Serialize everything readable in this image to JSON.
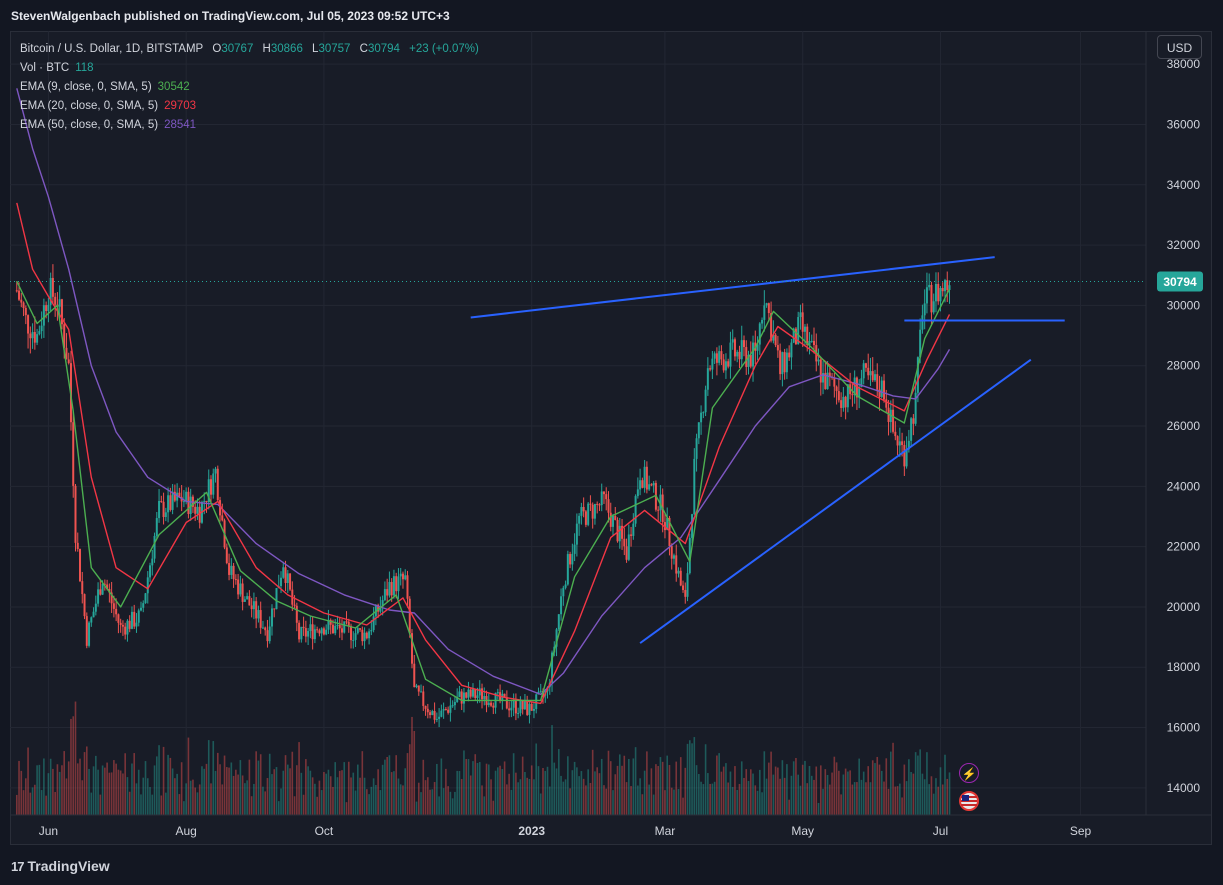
{
  "header": {
    "published": "StevenWalgenbach published on TradingView.com, Jul 05, 2023 09:52 UTC+3"
  },
  "legend": {
    "symbol": "Bitcoin / U.S. Dollar, 1D, BITSTAMP",
    "o_label": "O",
    "o_val": "30767",
    "h_label": "H",
    "h_val": "30866",
    "l_label": "L",
    "l_val": "30757",
    "c_label": "C",
    "c_val": "30794",
    "change": "+23 (+0.07%)",
    "vol_label": "Vol · BTC",
    "vol_val": "118",
    "ema9_label": "EMA (9, close, 0, SMA, 5)",
    "ema9_val": "30542",
    "ema20_label": "EMA (20, close, 0, SMA, 5)",
    "ema20_val": "29703",
    "ema50_label": "EMA (50, close, 0, SMA, 5)",
    "ema50_val": "28541"
  },
  "currency_button": "USD",
  "footer": {
    "brand": "TradingView",
    "logo_mark": "17"
  },
  "icons": {
    "lightning": "lightning-icon",
    "flag": "us-flag-icon"
  },
  "colors": {
    "up": "#26a69a",
    "down": "#ef5350",
    "ema9": "#4caf50",
    "ema20": "#f23645",
    "ema50": "#7e57c2",
    "trendline": "#2962ff",
    "last_price": "#26a69a"
  },
  "chart_data": {
    "type": "candlestick",
    "title": "Bitcoin / U.S. Dollar, 1D, BITSTAMP",
    "y_ticks": [
      14000,
      16000,
      18000,
      20000,
      22000,
      24000,
      26000,
      28000,
      30000,
      32000,
      34000,
      36000,
      38000
    ],
    "y_range": [
      13100,
      39100
    ],
    "x_ticks": [
      {
        "label": "Jun",
        "date": "2022-06-01"
      },
      {
        "label": "Aug",
        "date": "2022-08-01"
      },
      {
        "label": "Oct",
        "date": "2022-10-01"
      },
      {
        "label": "2023",
        "date": "2023-01-01"
      },
      {
        "label": "Mar",
        "date": "2023-03-01"
      },
      {
        "label": "May",
        "date": "2023-05-01"
      },
      {
        "label": "Jul",
        "date": "2023-07-01"
      },
      {
        "label": "Sep",
        "date": "2023-09-01"
      }
    ],
    "x_range": [
      "2022-05-15",
      "2023-09-30"
    ],
    "last_price": 30794,
    "price_path": [
      [
        "2022-05-18",
        30500
      ],
      [
        "2022-05-22",
        29500
      ],
      [
        "2022-05-27",
        29000
      ],
      [
        "2022-06-01",
        30500
      ],
      [
        "2022-06-05",
        30200
      ],
      [
        "2022-06-10",
        28000
      ],
      [
        "2022-06-13",
        22500
      ],
      [
        "2022-06-18",
        19000
      ],
      [
        "2022-06-25",
        21000
      ],
      [
        "2022-07-03",
        19300
      ],
      [
        "2022-07-12",
        19700
      ],
      [
        "2022-07-20",
        23200
      ],
      [
        "2022-07-30",
        23600
      ],
      [
        "2022-08-07",
        23200
      ],
      [
        "2022-08-14",
        24500
      ],
      [
        "2022-08-20",
        21200
      ],
      [
        "2022-08-28",
        20200
      ],
      [
        "2022-09-06",
        19200
      ],
      [
        "2022-09-13",
        21500
      ],
      [
        "2022-09-20",
        19000
      ],
      [
        "2022-09-30",
        19400
      ],
      [
        "2022-10-10",
        19200
      ],
      [
        "2022-10-20",
        19100
      ],
      [
        "2022-10-30",
        20700
      ],
      [
        "2022-11-06",
        20900
      ],
      [
        "2022-11-10",
        17200
      ],
      [
        "2022-11-20",
        16300
      ],
      [
        "2022-11-30",
        17000
      ],
      [
        "2022-12-10",
        17100
      ],
      [
        "2022-12-20",
        16800
      ],
      [
        "2022-12-31",
        16600
      ],
      [
        "2023-01-08",
        17200
      ],
      [
        "2023-01-15",
        20800
      ],
      [
        "2023-01-22",
        22900
      ],
      [
        "2023-02-02",
        23500
      ],
      [
        "2023-02-12",
        21800
      ],
      [
        "2023-02-18",
        24500
      ],
      [
        "2023-02-28",
        23200
      ],
      [
        "2023-03-10",
        20100
      ],
      [
        "2023-03-14",
        24600
      ],
      [
        "2023-03-20",
        28000
      ],
      [
        "2023-03-31",
        28400
      ],
      [
        "2023-04-10",
        28300
      ],
      [
        "2023-04-14",
        30400
      ],
      [
        "2023-04-21",
        27800
      ],
      [
        "2023-04-30",
        29300
      ],
      [
        "2023-05-10",
        27600
      ],
      [
        "2023-05-20",
        26900
      ],
      [
        "2023-05-28",
        27600
      ],
      [
        "2023-06-06",
        27200
      ],
      [
        "2023-06-10",
        25800
      ],
      [
        "2023-06-15",
        25100
      ],
      [
        "2023-06-20",
        26800
      ],
      [
        "2023-06-23",
        30000
      ],
      [
        "2023-06-30",
        30450
      ],
      [
        "2023-07-05",
        30794
      ]
    ],
    "ema50_path": [
      [
        "2022-05-18",
        37200
      ],
      [
        "2022-05-25",
        35200
      ],
      [
        "2022-06-01",
        33600
      ],
      [
        "2022-06-10",
        31200
      ],
      [
        "2022-06-20",
        28000
      ],
      [
        "2022-07-01",
        25800
      ],
      [
        "2022-07-15",
        24300
      ],
      [
        "2022-08-01",
        23500
      ],
      [
        "2022-08-15",
        23400
      ],
      [
        "2022-09-01",
        22100
      ],
      [
        "2022-09-20",
        21100
      ],
      [
        "2022-10-10",
        20400
      ],
      [
        "2022-10-30",
        19900
      ],
      [
        "2022-11-10",
        19800
      ],
      [
        "2022-11-25",
        18600
      ],
      [
        "2022-12-15",
        17700
      ],
      [
        "2023-01-05",
        17100
      ],
      [
        "2023-01-15",
        17800
      ],
      [
        "2023-02-01",
        19700
      ],
      [
        "2023-02-20",
        21300
      ],
      [
        "2023-03-08",
        22300
      ],
      [
        "2023-03-25",
        24200
      ],
      [
        "2023-04-10",
        26000
      ],
      [
        "2023-04-25",
        27300
      ],
      [
        "2023-05-10",
        27700
      ],
      [
        "2023-05-25",
        27400
      ],
      [
        "2023-06-10",
        27000
      ],
      [
        "2023-06-20",
        26900
      ],
      [
        "2023-06-30",
        27900
      ],
      [
        "2023-07-05",
        28541
      ]
    ],
    "ema20_path": [
      [
        "2022-05-18",
        33400
      ],
      [
        "2022-05-25",
        31200
      ],
      [
        "2022-06-01",
        30300
      ],
      [
        "2022-06-10",
        29200
      ],
      [
        "2022-06-20",
        24300
      ],
      [
        "2022-07-01",
        21300
      ],
      [
        "2022-07-15",
        20600
      ],
      [
        "2022-08-01",
        22800
      ],
      [
        "2022-08-15",
        23500
      ],
      [
        "2022-09-01",
        21300
      ],
      [
        "2022-09-15",
        20400
      ],
      [
        "2022-10-01",
        19800
      ],
      [
        "2022-10-20",
        19400
      ],
      [
        "2022-11-05",
        20300
      ],
      [
        "2022-11-15",
        18900
      ],
      [
        "2022-12-01",
        17400
      ],
      [
        "2022-12-20",
        17000
      ],
      [
        "2023-01-05",
        16800
      ],
      [
        "2023-01-20",
        19200
      ],
      [
        "2023-02-05",
        22300
      ],
      [
        "2023-02-20",
        23200
      ],
      [
        "2023-03-10",
        22100
      ],
      [
        "2023-03-25",
        25300
      ],
      [
        "2023-04-10",
        28000
      ],
      [
        "2023-04-20",
        29300
      ],
      [
        "2023-05-05",
        28500
      ],
      [
        "2023-05-25",
        27300
      ],
      [
        "2023-06-15",
        26500
      ],
      [
        "2023-06-25",
        28200
      ],
      [
        "2023-07-05",
        29703
      ]
    ],
    "ema9_path": [
      [
        "2022-05-18",
        30800
      ],
      [
        "2022-05-27",
        29400
      ],
      [
        "2022-06-05",
        30000
      ],
      [
        "2022-06-12",
        26500
      ],
      [
        "2022-06-20",
        21300
      ],
      [
        "2022-07-03",
        20000
      ],
      [
        "2022-07-20",
        22400
      ],
      [
        "2022-08-10",
        23800
      ],
      [
        "2022-08-25",
        21200
      ],
      [
        "2022-09-10",
        20200
      ],
      [
        "2022-09-25",
        19700
      ],
      [
        "2022-10-15",
        19300
      ],
      [
        "2022-11-02",
        20400
      ],
      [
        "2022-11-15",
        17600
      ],
      [
        "2022-12-01",
        16900
      ],
      [
        "2022-12-20",
        16900
      ],
      [
        "2023-01-05",
        16900
      ],
      [
        "2023-01-20",
        21000
      ],
      [
        "2023-02-05",
        23000
      ],
      [
        "2023-02-25",
        23700
      ],
      [
        "2023-03-12",
        21500
      ],
      [
        "2023-03-22",
        26600
      ],
      [
        "2023-04-10",
        28600
      ],
      [
        "2023-04-18",
        29800
      ],
      [
        "2023-05-05",
        28600
      ],
      [
        "2023-05-25",
        27000
      ],
      [
        "2023-06-15",
        26100
      ],
      [
        "2023-06-24",
        28900
      ],
      [
        "2023-07-05",
        30542
      ]
    ],
    "trendlines": [
      {
        "from": [
          "2022-12-05",
          29600
        ],
        "to": [
          "2023-07-25",
          31600
        ]
      },
      {
        "from": [
          "2023-06-15",
          29500
        ],
        "to": [
          "2023-08-25",
          29500
        ]
      },
      {
        "from": [
          "2023-02-18",
          18800
        ],
        "to": [
          "2023-08-10",
          28200
        ]
      }
    ]
  }
}
